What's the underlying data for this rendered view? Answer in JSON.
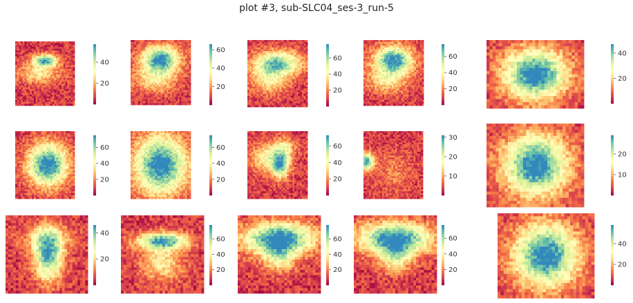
{
  "figure": {
    "title": "plot #3, sub-SLC04_ses-3_run-5"
  },
  "colormap": {
    "name": "Spectral",
    "stops": [
      "#9e0142",
      "#d53e4f",
      "#f46d43",
      "#fdae61",
      "#fee08b",
      "#ffffbf",
      "#e6f598",
      "#abdda4",
      "#66c2a5",
      "#3288bd"
    ]
  },
  "chart_data": [
    {
      "type": "heatmap",
      "row": 1,
      "col": 1,
      "view": "sagittal",
      "shape": "blob-small",
      "colorbar_ticks": [
        20,
        40
      ],
      "vmin": 0,
      "vmax": 57
    },
    {
      "type": "heatmap",
      "row": 1,
      "col": 2,
      "view": "sagittal",
      "shape": "blob-mid",
      "colorbar_ticks": [
        20,
        40,
        60
      ],
      "vmin": 0,
      "vmax": 66
    },
    {
      "type": "heatmap",
      "row": 1,
      "col": 3,
      "view": "sagittal",
      "shape": "blob-wide",
      "colorbar_ticks": [
        20,
        40,
        60
      ],
      "vmin": 0,
      "vmax": 77
    },
    {
      "type": "heatmap",
      "row": 1,
      "col": 4,
      "view": "sagittal",
      "shape": "blob-mid",
      "colorbar_ticks": [
        20,
        40,
        60
      ],
      "vmin": 0,
      "vmax": 75
    },
    {
      "type": "heatmap",
      "row": 1,
      "col": 5,
      "view": "sagittal",
      "shape": "oval-large",
      "colorbar_ticks": [
        20,
        40
      ],
      "vmin": 0,
      "vmax": 47
    },
    {
      "type": "heatmap",
      "row": 2,
      "col": 1,
      "view": "axial",
      "shape": "oval",
      "colorbar_ticks": [
        20,
        40,
        60
      ],
      "vmin": 0,
      "vmax": 75
    },
    {
      "type": "heatmap",
      "row": 2,
      "col": 2,
      "view": "axial",
      "shape": "oval-full",
      "colorbar_ticks": [
        20,
        40,
        60
      ],
      "vmin": 0,
      "vmax": 75
    },
    {
      "type": "heatmap",
      "row": 2,
      "col": 3,
      "view": "axial",
      "shape": "cross",
      "colorbar_ticks": [
        20,
        40,
        60
      ],
      "vmin": 0,
      "vmax": 73
    },
    {
      "type": "heatmap",
      "row": 2,
      "col": 4,
      "view": "axial",
      "shape": "edge-left",
      "colorbar_ticks": [
        10,
        20,
        30
      ],
      "vmin": 0,
      "vmax": 31
    },
    {
      "type": "heatmap",
      "row": 2,
      "col": 5,
      "view": "axial",
      "shape": "oval-large",
      "colorbar_ticks": [
        10,
        20
      ],
      "vmin": 0,
      "vmax": 29
    },
    {
      "type": "heatmap",
      "row": 3,
      "col": 1,
      "view": "coronal",
      "shape": "column",
      "colorbar_ticks": [
        20,
        40
      ],
      "vmin": 0,
      "vmax": 46
    },
    {
      "type": "heatmap",
      "row": 3,
      "col": 2,
      "view": "coronal",
      "shape": "band",
      "colorbar_ticks": [
        20,
        40,
        60
      ],
      "vmin": 0,
      "vmax": 78
    },
    {
      "type": "heatmap",
      "row": 3,
      "col": 3,
      "view": "coronal",
      "shape": "bowl",
      "colorbar_ticks": [
        20,
        40,
        60
      ],
      "vmin": 0,
      "vmax": 78
    },
    {
      "type": "heatmap",
      "row": 3,
      "col": 4,
      "view": "coronal",
      "shape": "bowl",
      "colorbar_ticks": [
        20,
        40,
        60
      ],
      "vmin": 0,
      "vmax": 77
    },
    {
      "type": "heatmap",
      "row": 3,
      "col": 5,
      "view": "coronal",
      "shape": "oval-large",
      "colorbar_ticks": [
        20,
        40
      ],
      "vmin": 0,
      "vmax": 58
    }
  ]
}
